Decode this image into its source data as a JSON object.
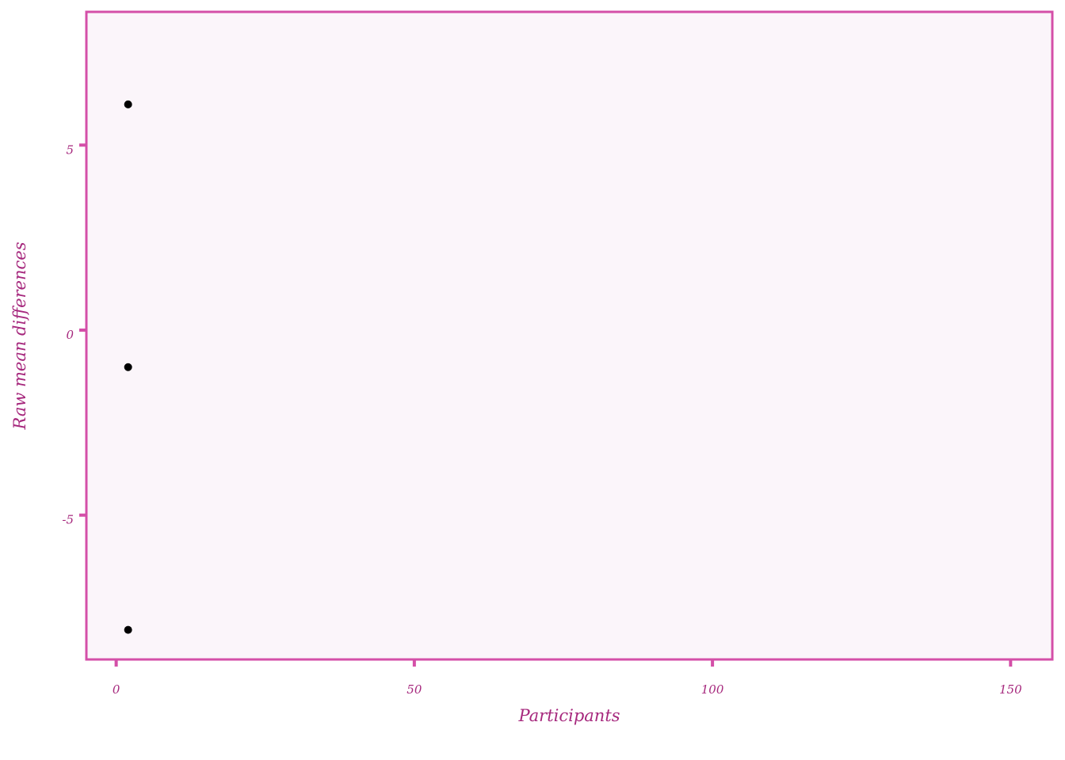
{
  "chart_data": {
    "type": "scatter",
    "title": "",
    "xlabel": "Participants",
    "ylabel": "Raw mean differences",
    "xlim": [
      -5,
      157
    ],
    "ylim": [
      -8.9,
      8.6
    ],
    "x_ticks": [
      0,
      50,
      100,
      150
    ],
    "x_tick_labels": [
      "0",
      "50",
      "100",
      "150"
    ],
    "y_ticks": [
      -5,
      0,
      5
    ],
    "y_tick_labels": [
      "-5",
      "0",
      "5"
    ],
    "grid": false,
    "series": [
      {
        "points": [
          {
            "x": 2,
            "y": 6.1
          },
          {
            "x": 2,
            "y": -1.0
          },
          {
            "x": 2,
            "y": -8.1
          }
        ]
      }
    ],
    "colors": {
      "accent": "#d44fa8",
      "text": "#a6287d",
      "panel_background": "#fbf5fa",
      "point": "#000000"
    }
  }
}
